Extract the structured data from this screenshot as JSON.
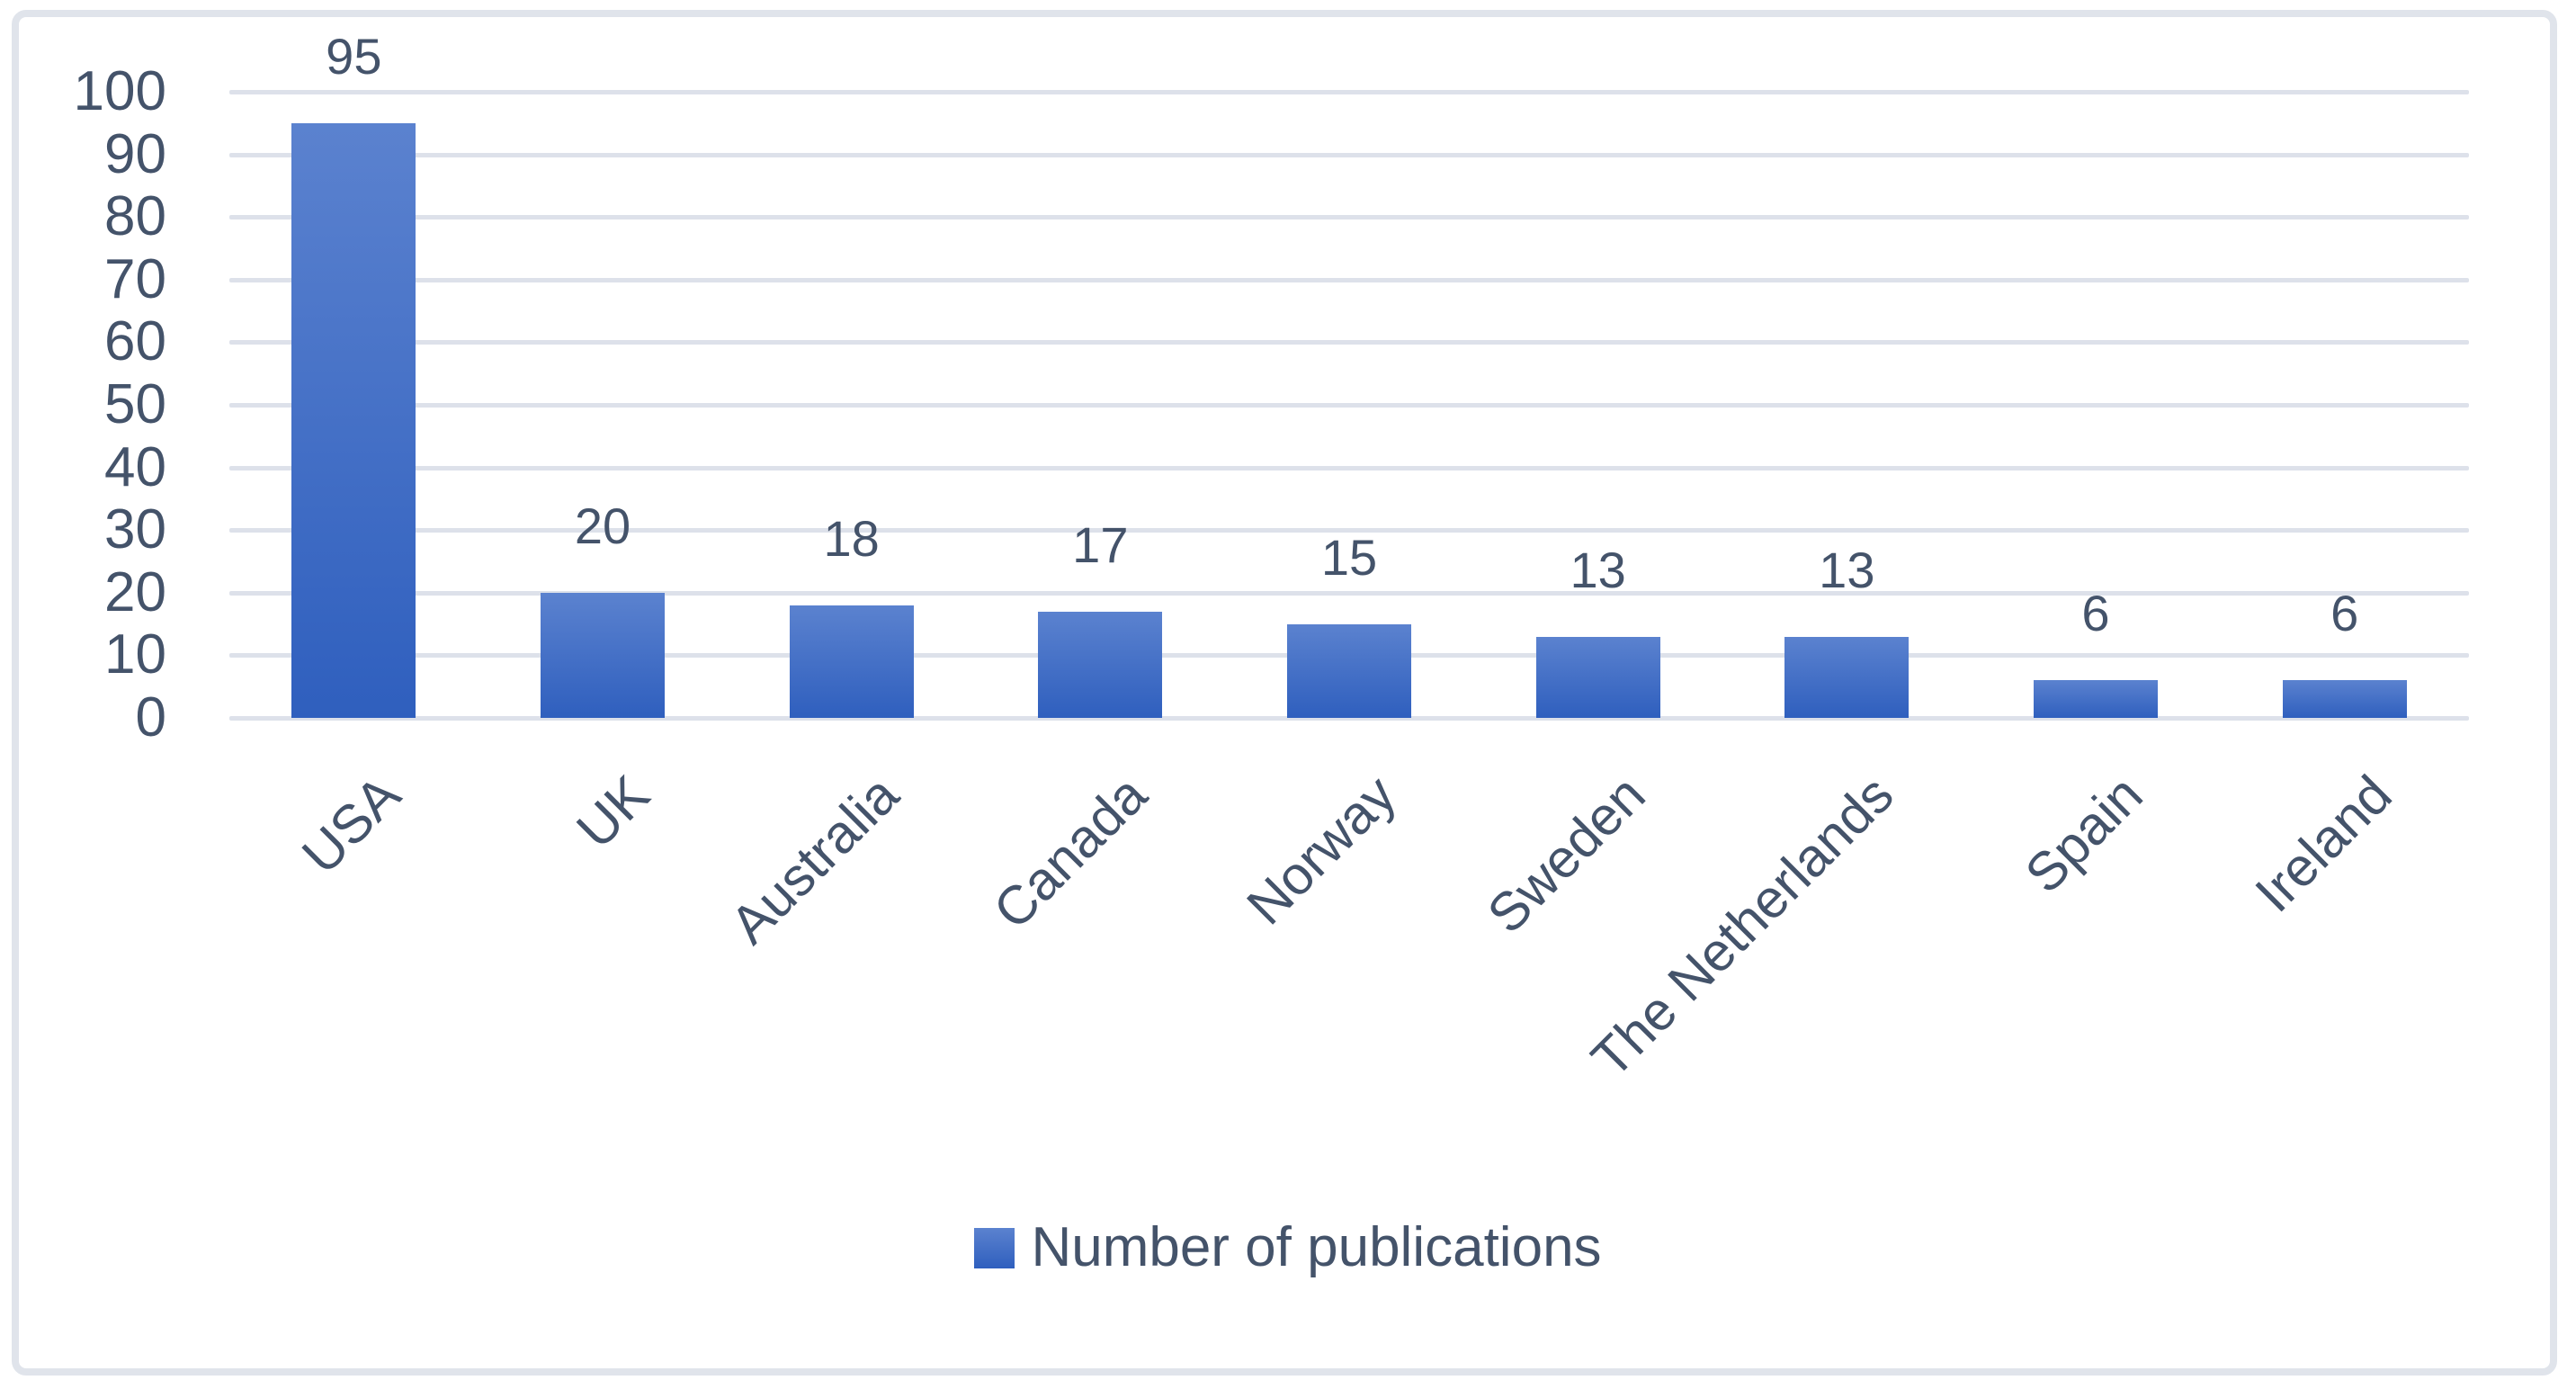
{
  "chart_data": {
    "type": "bar",
    "title": "",
    "xlabel": "",
    "ylabel": "",
    "categories": [
      "USA",
      "UK",
      "Australia",
      "Canada",
      "Norway",
      "Sweden",
      "The Netherlands",
      "Spain",
      "Ireland"
    ],
    "values": [
      95,
      20,
      18,
      17,
      15,
      13,
      13,
      6,
      6
    ],
    "data_labels": [
      "95",
      "20",
      "18",
      "17",
      "15",
      "13",
      "13",
      "6",
      "6"
    ],
    "legend": "Number of publications",
    "legend_position": "bottom-center",
    "ylim": [
      0,
      100
    ],
    "yticks": [
      0,
      10,
      20,
      30,
      40,
      50,
      60,
      70,
      80,
      90,
      100
    ],
    "ytick_labels": [
      "0",
      "10",
      "20",
      "30",
      "40",
      "50",
      "60",
      "70",
      "80",
      "90",
      "100"
    ],
    "grid": "horizontal",
    "x_label_rotation_deg": 45,
    "colors": {
      "bar_gradient_top": "#5b82cf",
      "bar_gradient_bottom": "#2f5fbe",
      "text": "#44536a",
      "gridline": "#dde1ea",
      "frame_border": "#e0e4eb",
      "background": "#ffffff"
    }
  }
}
